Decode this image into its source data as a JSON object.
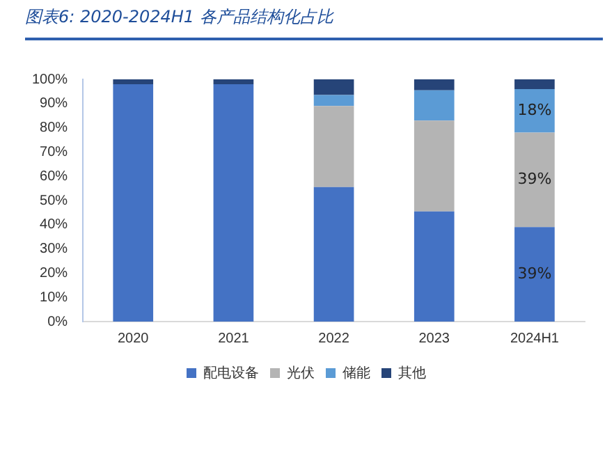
{
  "chart_data": {
    "type": "bar",
    "title": "图表6:  2020-2024H1 各产品结构化占比",
    "stacked": true,
    "categories": [
      "2020",
      "2021",
      "2022",
      "2023",
      "2024H1"
    ],
    "series": [
      {
        "name": "配电设备",
        "color": "#4472c4",
        "values": [
          98,
          98,
          55.5,
          45.5,
          39
        ],
        "value_labels": [
          null,
          null,
          null,
          null,
          "39%"
        ]
      },
      {
        "name": "光伏",
        "color": "#b4b4b4",
        "values": [
          0,
          0,
          33.5,
          37.5,
          39
        ],
        "value_labels": [
          null,
          null,
          null,
          null,
          "39%"
        ]
      },
      {
        "name": "储能",
        "color": "#5b9bd5",
        "values": [
          0,
          0,
          4.5,
          12.5,
          18
        ],
        "value_labels": [
          null,
          null,
          null,
          null,
          "18%"
        ]
      },
      {
        "name": "其他",
        "color": "#264478",
        "values": [
          2,
          2,
          6.5,
          4.5,
          4
        ]
      }
    ],
    "ylim": [
      0,
      100
    ],
    "yticks": [
      {
        "value": 0,
        "label": "0%"
      },
      {
        "value": 10,
        "label": "10%"
      },
      {
        "value": 20,
        "label": "20%"
      },
      {
        "value": 30,
        "label": "30%"
      },
      {
        "value": 40,
        "label": "40%"
      },
      {
        "value": 50,
        "label": "50%"
      },
      {
        "value": 60,
        "label": "60%"
      },
      {
        "value": 70,
        "label": "70%"
      },
      {
        "value": 80,
        "label": "80%"
      },
      {
        "value": 90,
        "label": "90%"
      },
      {
        "value": 100,
        "label": "100%"
      }
    ],
    "grid": false,
    "legend": "bottom"
  }
}
